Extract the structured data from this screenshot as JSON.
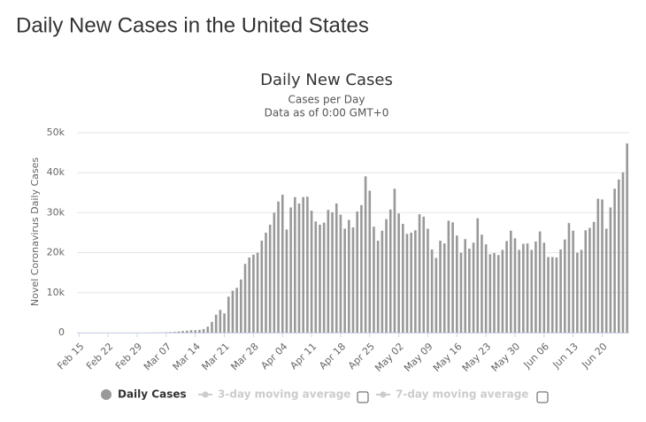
{
  "page_title": "Daily New Cases in the United States",
  "chart_data": {
    "type": "bar",
    "title": "Daily New Cases",
    "subtitle": [
      "Cases per Day",
      "Data as of 0:00 GMT+0"
    ],
    "y_label": "Novel Coronavirus Daily Cases",
    "categories": [
      "Feb 15",
      null,
      null,
      null,
      null,
      null,
      null,
      "Feb 22",
      null,
      null,
      null,
      null,
      null,
      null,
      "Feb 29",
      null,
      null,
      null,
      null,
      null,
      null,
      "Mar 07",
      null,
      null,
      null,
      null,
      null,
      null,
      "Mar 14",
      null,
      null,
      null,
      null,
      null,
      null,
      "Mar 21",
      null,
      null,
      null,
      null,
      null,
      null,
      "Mar 28",
      null,
      null,
      null,
      null,
      null,
      null,
      "Apr 04",
      null,
      null,
      null,
      null,
      null,
      null,
      "Apr 11",
      null,
      null,
      null,
      null,
      null,
      null,
      "Apr 18",
      null,
      null,
      null,
      null,
      null,
      null,
      "Apr 25",
      null,
      null,
      null,
      null,
      null,
      null,
      "May 02",
      null,
      null,
      null,
      null,
      null,
      null,
      "May 09",
      null,
      null,
      null,
      null,
      null,
      null,
      "May 16",
      null,
      null,
      null,
      null,
      null,
      null,
      "May 23",
      null,
      null,
      null,
      null,
      null,
      null,
      "May 30",
      null,
      null,
      null,
      null,
      null,
      null,
      "Jun 06",
      null,
      null,
      null,
      null,
      null,
      null,
      "Jun 13",
      null,
      null,
      null,
      null,
      null,
      null,
      "Jun 20",
      null,
      null,
      null,
      null,
      null,
      null
    ],
    "series": [
      {
        "name": "Daily Cases",
        "color": "#999999",
        "values": [
          0,
          0,
          0,
          0,
          0,
          0,
          0,
          0,
          0,
          0,
          0,
          0,
          0,
          0,
          0,
          3,
          5,
          20,
          30,
          40,
          60,
          100,
          150,
          200,
          300,
          400,
          500,
          600,
          600,
          700,
          900,
          1500,
          2700,
          4500,
          5700,
          4800,
          9000,
          10500,
          11200,
          13300,
          17200,
          18800,
          19500,
          20000,
          23000,
          25000,
          27000,
          30000,
          32800,
          34500,
          25800,
          31300,
          33900,
          32300,
          33900,
          34000,
          30500,
          27800,
          27000,
          27500,
          30700,
          30100,
          32300,
          29500,
          26000,
          28200,
          26300,
          30300,
          31900,
          39100,
          35500,
          26500,
          23000,
          25500,
          28400,
          30800,
          36000,
          29800,
          27200,
          24700,
          25000,
          25600,
          29600,
          29000,
          26000,
          20800,
          18700,
          23000,
          22300,
          28000,
          27600,
          24300,
          20000,
          23400,
          21000,
          22500,
          28600,
          24500,
          22100,
          19600,
          19900,
          19400,
          20700,
          22900,
          25500,
          23600,
          20700,
          22200,
          22300,
          20700,
          22800,
          25300,
          22500,
          18900,
          18900,
          18800,
          20800,
          23300,
          27400,
          25500,
          20000,
          20700,
          25600,
          26200,
          27700,
          33500,
          33300,
          26000,
          31300,
          36000,
          38300,
          40100,
          47300
        ]
      }
    ],
    "toggles": [
      {
        "name": "3-day moving average",
        "color": "#cccccc"
      },
      {
        "name": "7-day moving average",
        "color": "#cccccc"
      }
    ],
    "ylim": [
      0,
      50000
    ],
    "yticks": [
      0,
      {
        "value": 10000,
        "label": "10k"
      },
      {
        "value": 20000,
        "label": "20k"
      },
      {
        "value": 30000,
        "label": "30k"
      },
      {
        "value": 40000,
        "label": "40k"
      },
      {
        "value": 50000,
        "label": "50k"
      }
    ],
    "grid": true
  }
}
